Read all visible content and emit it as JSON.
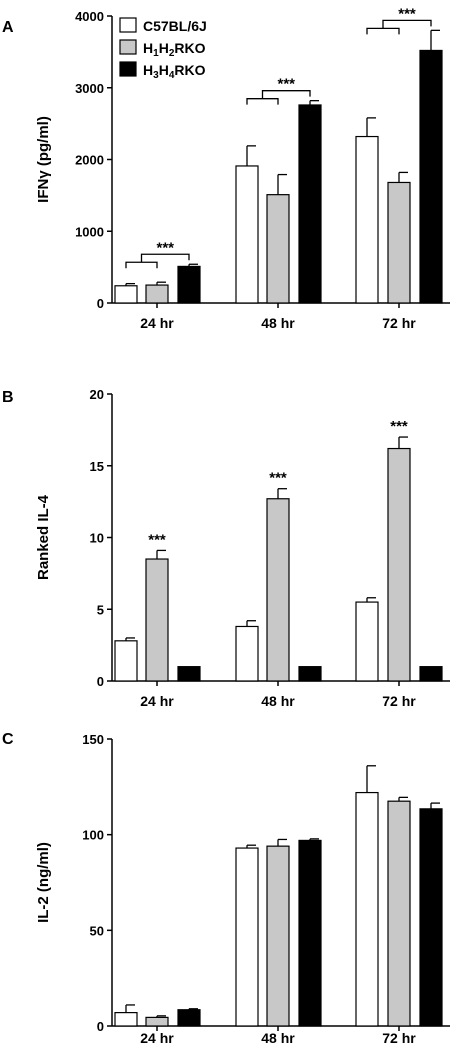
{
  "legend": {
    "entries": [
      {
        "label": "C57BL/6J",
        "color": "#ffffff"
      },
      {
        "label": "H1H2RKO",
        "label_parts": [
          "H",
          "1",
          "H",
          "2",
          "RKO"
        ],
        "color": "#c8c8c8"
      },
      {
        "label": "H3H4RKO",
        "label_parts": [
          "H",
          "3",
          "H",
          "4",
          "RKO"
        ],
        "color": "#000000"
      }
    ]
  },
  "chart_data": [
    {
      "panel": "A",
      "type": "bar",
      "ylabel": "IFNγ (pg/ml)",
      "categories": [
        "24 hr",
        "48 hr",
        "72 hr"
      ],
      "ylim": [
        0,
        4000
      ],
      "yticks": [
        0,
        1000,
        2000,
        3000,
        4000
      ],
      "series": [
        {
          "name": "C57BL/6J",
          "values": [
            240,
            1910,
            2320
          ],
          "errors": [
            30,
            280,
            260
          ]
        },
        {
          "name": "H1H2RKO",
          "values": [
            250,
            1510,
            1680
          ],
          "errors": [
            40,
            280,
            140
          ]
        },
        {
          "name": "H3H4RKO",
          "values": [
            510,
            2760,
            3520
          ],
          "errors": [
            30,
            60,
            280
          ]
        }
      ],
      "annotations": [
        {
          "category": "24 hr",
          "text": "***"
        },
        {
          "category": "48 hr",
          "text": "***"
        },
        {
          "category": "72 hr",
          "text": "***"
        }
      ]
    },
    {
      "panel": "B",
      "type": "bar",
      "ylabel": "Ranked IL-4",
      "categories": [
        "24 hr",
        "48 hr",
        "72 hr"
      ],
      "ylim": [
        0,
        20
      ],
      "yticks": [
        0,
        5,
        10,
        15,
        20
      ],
      "series": [
        {
          "name": "C57BL/6J",
          "values": [
            2.8,
            3.8,
            5.5
          ],
          "errors": [
            0.2,
            0.4,
            0.3
          ]
        },
        {
          "name": "H1H2RKO",
          "values": [
            8.5,
            12.7,
            16.2
          ],
          "errors": [
            0.6,
            0.7,
            0.8
          ]
        },
        {
          "name": "H3H4RKO",
          "values": [
            1.0,
            1.0,
            1.0
          ],
          "errors": [
            0,
            0,
            0
          ]
        }
      ],
      "annotations": [
        {
          "category": "24 hr",
          "text": "***"
        },
        {
          "category": "48 hr",
          "text": "***"
        },
        {
          "category": "72 hr",
          "text": "***"
        }
      ]
    },
    {
      "panel": "C",
      "type": "bar",
      "ylabel": "IL-2 (ng/ml)",
      "categories": [
        "24 hr",
        "48 hr",
        "72 hr"
      ],
      "ylim": [
        0,
        150
      ],
      "yticks": [
        0,
        50,
        100,
        150
      ],
      "series": [
        {
          "name": "C57BL/6J",
          "values": [
            7,
            93,
            122
          ],
          "errors": [
            4,
            1.5,
            14
          ]
        },
        {
          "name": "H1H2RKO",
          "values": [
            4.5,
            94,
            117.5
          ],
          "errors": [
            0.8,
            3.5,
            2
          ]
        },
        {
          "name": "H3H4RKO",
          "values": [
            8.5,
            97,
            113.5
          ],
          "errors": [
            0.5,
            0.8,
            3
          ]
        }
      ],
      "annotations": []
    }
  ]
}
